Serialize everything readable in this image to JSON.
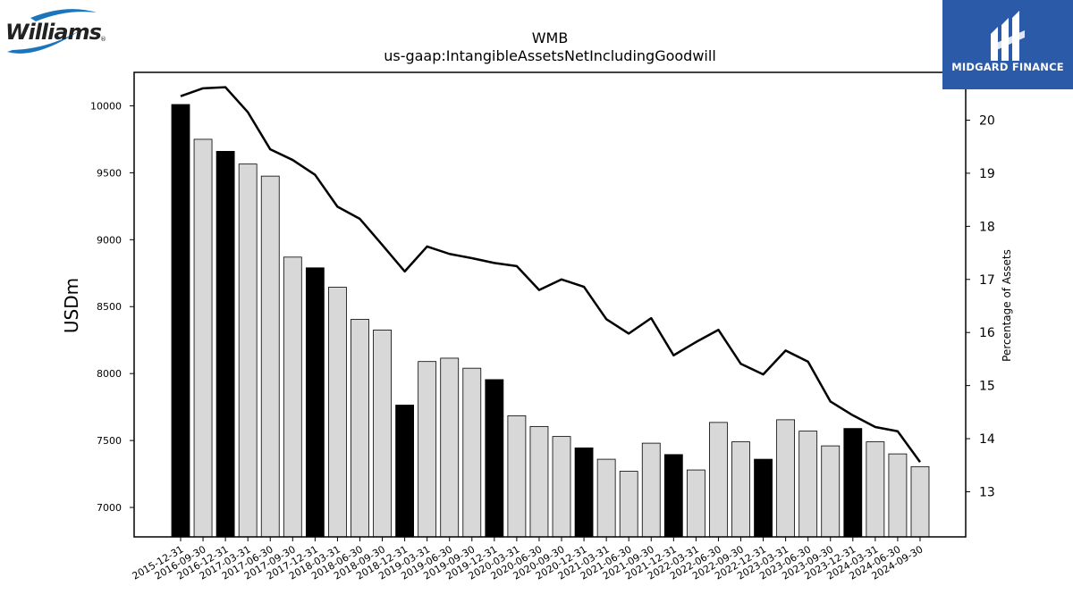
{
  "logos": {
    "williams": "Williams",
    "williams_mark": "®",
    "midgard": "MIDGARD FINANCE"
  },
  "colors": {
    "bar_year_end": "#000000",
    "bar_quarter": "#d8d8d8",
    "line": "#000000",
    "midgard_bg": "#2a5aa8",
    "williams_blue": "#1b75bc"
  },
  "chart_data": {
    "type": "bar",
    "title": "WMB",
    "subtitle": "us-gaap:IntangibleAssetsNetIncludingGoodwill",
    "ylabel": "USDm",
    "y2label": "Percentage of Assets",
    "ylim": [
      6780,
      10250
    ],
    "y2lim": [
      12.15,
      20.9
    ],
    "yticks": [
      7000,
      7500,
      8000,
      8500,
      9000,
      9500,
      10000
    ],
    "y2ticks": [
      13,
      14,
      15,
      16,
      17,
      18,
      19,
      20
    ],
    "grid": false,
    "categories": [
      "2015-12-31",
      "2016-09-30",
      "2016-12-31",
      "2017-03-31",
      "2017-06-30",
      "2017-09-30",
      "2017-12-31",
      "2018-03-31",
      "2018-06-30",
      "2018-09-30",
      "2018-12-31",
      "2019-03-31",
      "2019-06-30",
      "2019-09-30",
      "2019-12-31",
      "2020-03-31",
      "2020-06-30",
      "2020-09-30",
      "2020-12-31",
      "2021-03-31",
      "2021-06-30",
      "2021-09-30",
      "2021-12-31",
      "2022-03-31",
      "2022-06-30",
      "2022-09-30",
      "2022-12-31",
      "2023-03-31",
      "2023-06-30",
      "2023-09-30",
      "2023-12-31",
      "2024-03-31",
      "2024-06-30",
      "2024-09-30"
    ],
    "series": [
      {
        "type": "bar",
        "values": [
          10010,
          9750,
          9660,
          9565,
          9475,
          8870,
          8790,
          8645,
          8405,
          8325,
          7765,
          8090,
          8115,
          8040,
          7955,
          7685,
          7605,
          7530,
          7445,
          7360,
          7270,
          7480,
          7395,
          7280,
          7635,
          7490,
          7360,
          7655,
          7570,
          7460,
          7590,
          7490,
          7400,
          7305
        ],
        "year_end": [
          true,
          false,
          true,
          false,
          false,
          false,
          true,
          false,
          false,
          false,
          true,
          false,
          false,
          false,
          true,
          false,
          false,
          false,
          true,
          false,
          false,
          false,
          true,
          false,
          false,
          false,
          true,
          false,
          false,
          false,
          true,
          false,
          false,
          false
        ]
      },
      {
        "type": "line",
        "axis": "right",
        "values": [
          20.45,
          20.6,
          20.62,
          20.15,
          19.45,
          19.25,
          18.97,
          18.37,
          18.14,
          17.65,
          17.15,
          17.62,
          17.48,
          17.4,
          17.31,
          17.25,
          16.8,
          17.0,
          16.86,
          16.25,
          15.98,
          16.27,
          15.57,
          15.82,
          16.05,
          15.41,
          15.21,
          15.66,
          15.45,
          14.7,
          14.44,
          14.22,
          14.14,
          13.56
        ]
      }
    ]
  }
}
